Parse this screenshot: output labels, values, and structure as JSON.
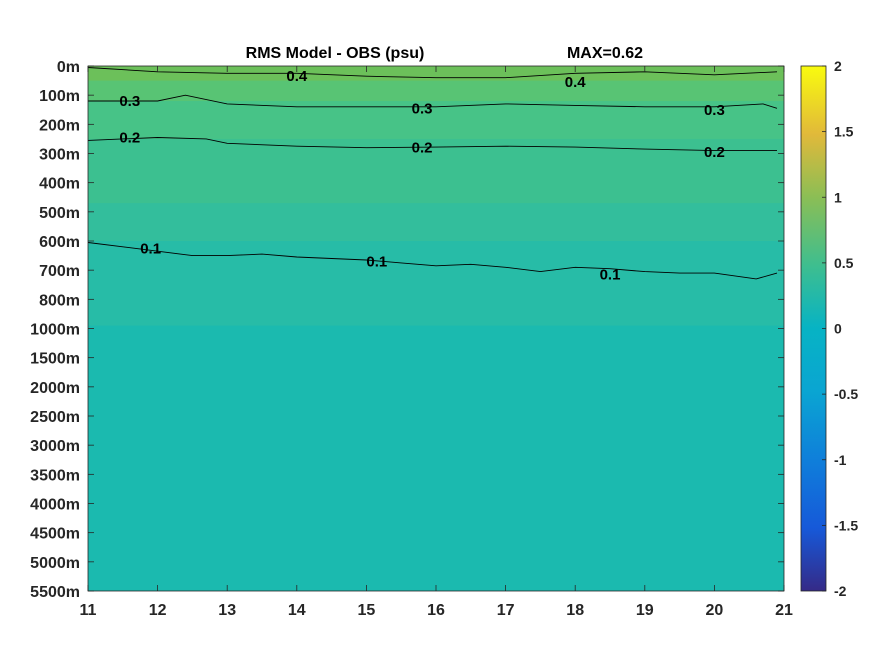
{
  "chart_data": {
    "type": "heatmap",
    "title": "RMS Model - OBS (psu)",
    "max_label": "MAX=0.62",
    "xlabel": "",
    "ylabel": "",
    "x_ticks": [
      "11",
      "12",
      "13",
      "14",
      "15",
      "16",
      "17",
      "18",
      "19",
      "20",
      "21"
    ],
    "xlim": [
      11,
      21
    ],
    "y_ticks": [
      "0m",
      "100m",
      "200m",
      "300m",
      "400m",
      "500m",
      "600m",
      "700m",
      "800m",
      "1000m",
      "1500m",
      "2000m",
      "2500m",
      "3000m",
      "3500m",
      "4000m",
      "4500m",
      "5000m",
      "5500m"
    ],
    "y_scale": "categorical depth levels (non-uniform)",
    "colorbar": {
      "ticks": [
        "2",
        "1.5",
        "1",
        "0.5",
        "0",
        "-0.5",
        "-1",
        "-1.5",
        "-2"
      ],
      "range": [
        -2,
        2
      ],
      "colormap": "parula"
    },
    "contours": [
      {
        "level": 0.4,
        "label": "0.4",
        "points": [
          [
            11.0,
            0.05
          ],
          [
            12.0,
            0.2
          ],
          [
            13.0,
            0.25
          ],
          [
            14.0,
            0.25
          ],
          [
            15.0,
            0.35
          ],
          [
            16.0,
            0.4
          ],
          [
            17.0,
            0.4
          ],
          [
            18.0,
            0.25
          ],
          [
            19.0,
            0.2
          ],
          [
            20.0,
            0.3
          ],
          [
            20.9,
            0.2
          ]
        ]
      },
      {
        "level": 0.3,
        "label": "0.3",
        "points": [
          [
            11.0,
            1.2
          ],
          [
            12.0,
            1.2
          ],
          [
            12.4,
            1.0
          ],
          [
            13.0,
            1.3
          ],
          [
            14.0,
            1.4
          ],
          [
            15.0,
            1.4
          ],
          [
            16.0,
            1.4
          ],
          [
            17.0,
            1.3
          ],
          [
            18.0,
            1.35
          ],
          [
            19.0,
            1.4
          ],
          [
            20.0,
            1.4
          ],
          [
            20.7,
            1.3
          ],
          [
            20.9,
            1.45
          ]
        ]
      },
      {
        "level": 0.2,
        "label": "0.2",
        "points": [
          [
            11.0,
            2.55
          ],
          [
            12.0,
            2.45
          ],
          [
            12.7,
            2.5
          ],
          [
            13.0,
            2.65
          ],
          [
            14.0,
            2.75
          ],
          [
            15.0,
            2.8
          ],
          [
            16.0,
            2.78
          ],
          [
            17.0,
            2.75
          ],
          [
            18.0,
            2.78
          ],
          [
            19.0,
            2.85
          ],
          [
            20.0,
            2.9
          ],
          [
            20.9,
            2.9
          ]
        ]
      },
      {
        "level": 0.1,
        "label": "0.1",
        "points": [
          [
            11.0,
            6.05
          ],
          [
            11.5,
            6.2
          ],
          [
            12.0,
            6.35
          ],
          [
            12.5,
            6.5
          ],
          [
            13.0,
            6.5
          ],
          [
            13.5,
            6.45
          ],
          [
            14.0,
            6.55
          ],
          [
            14.5,
            6.6
          ],
          [
            15.0,
            6.65
          ],
          [
            15.5,
            6.75
          ],
          [
            16.0,
            6.85
          ],
          [
            16.5,
            6.8
          ],
          [
            17.0,
            6.9
          ],
          [
            17.5,
            7.05
          ],
          [
            18.0,
            6.9
          ],
          [
            18.5,
            6.95
          ],
          [
            19.0,
            7.05
          ],
          [
            19.5,
            7.1
          ],
          [
            20.0,
            7.1
          ],
          [
            20.6,
            7.3
          ],
          [
            20.9,
            7.1
          ]
        ]
      }
    ],
    "contour_labels": [
      {
        "text": "0.4",
        "x": 14.0,
        "y": 0.35
      },
      {
        "text": "0.4",
        "x": 18.0,
        "y": 0.55
      },
      {
        "text": "0.3",
        "x": 11.6,
        "y": 1.2
      },
      {
        "text": "0.3",
        "x": 15.8,
        "y": 1.45
      },
      {
        "text": "0.3",
        "x": 20.0,
        "y": 1.5
      },
      {
        "text": "0.2",
        "x": 11.6,
        "y": 2.45
      },
      {
        "text": "0.2",
        "x": 15.8,
        "y": 2.8
      },
      {
        "text": "0.2",
        "x": 20.0,
        "y": 2.95
      },
      {
        "text": "0.1",
        "x": 11.9,
        "y": 6.25
      },
      {
        "text": "0.1",
        "x": 15.15,
        "y": 6.7
      },
      {
        "text": "0.1",
        "x": 18.5,
        "y": 7.15
      }
    ],
    "bands": [
      {
        "value": 0.45,
        "color": "#6cc05a",
        "y": [
          0.0,
          0.5
        ]
      },
      {
        "value": 0.35,
        "color": "#58c474",
        "y": [
          0.5,
          1.2
        ]
      },
      {
        "value": 0.27,
        "color": "#47c387",
        "y": [
          1.2,
          2.5
        ]
      },
      {
        "value": 0.2,
        "color": "#3cc090",
        "y": [
          2.5,
          4.7
        ]
      },
      {
        "value": 0.15,
        "color": "#33be9c",
        "y": [
          4.7,
          6.0
        ]
      },
      {
        "value": 0.1,
        "color": "#27bca7",
        "y": [
          6.0,
          8.9
        ]
      },
      {
        "value": 0.05,
        "color": "#1bbaaf",
        "y": [
          8.9,
          18.0
        ]
      }
    ]
  }
}
